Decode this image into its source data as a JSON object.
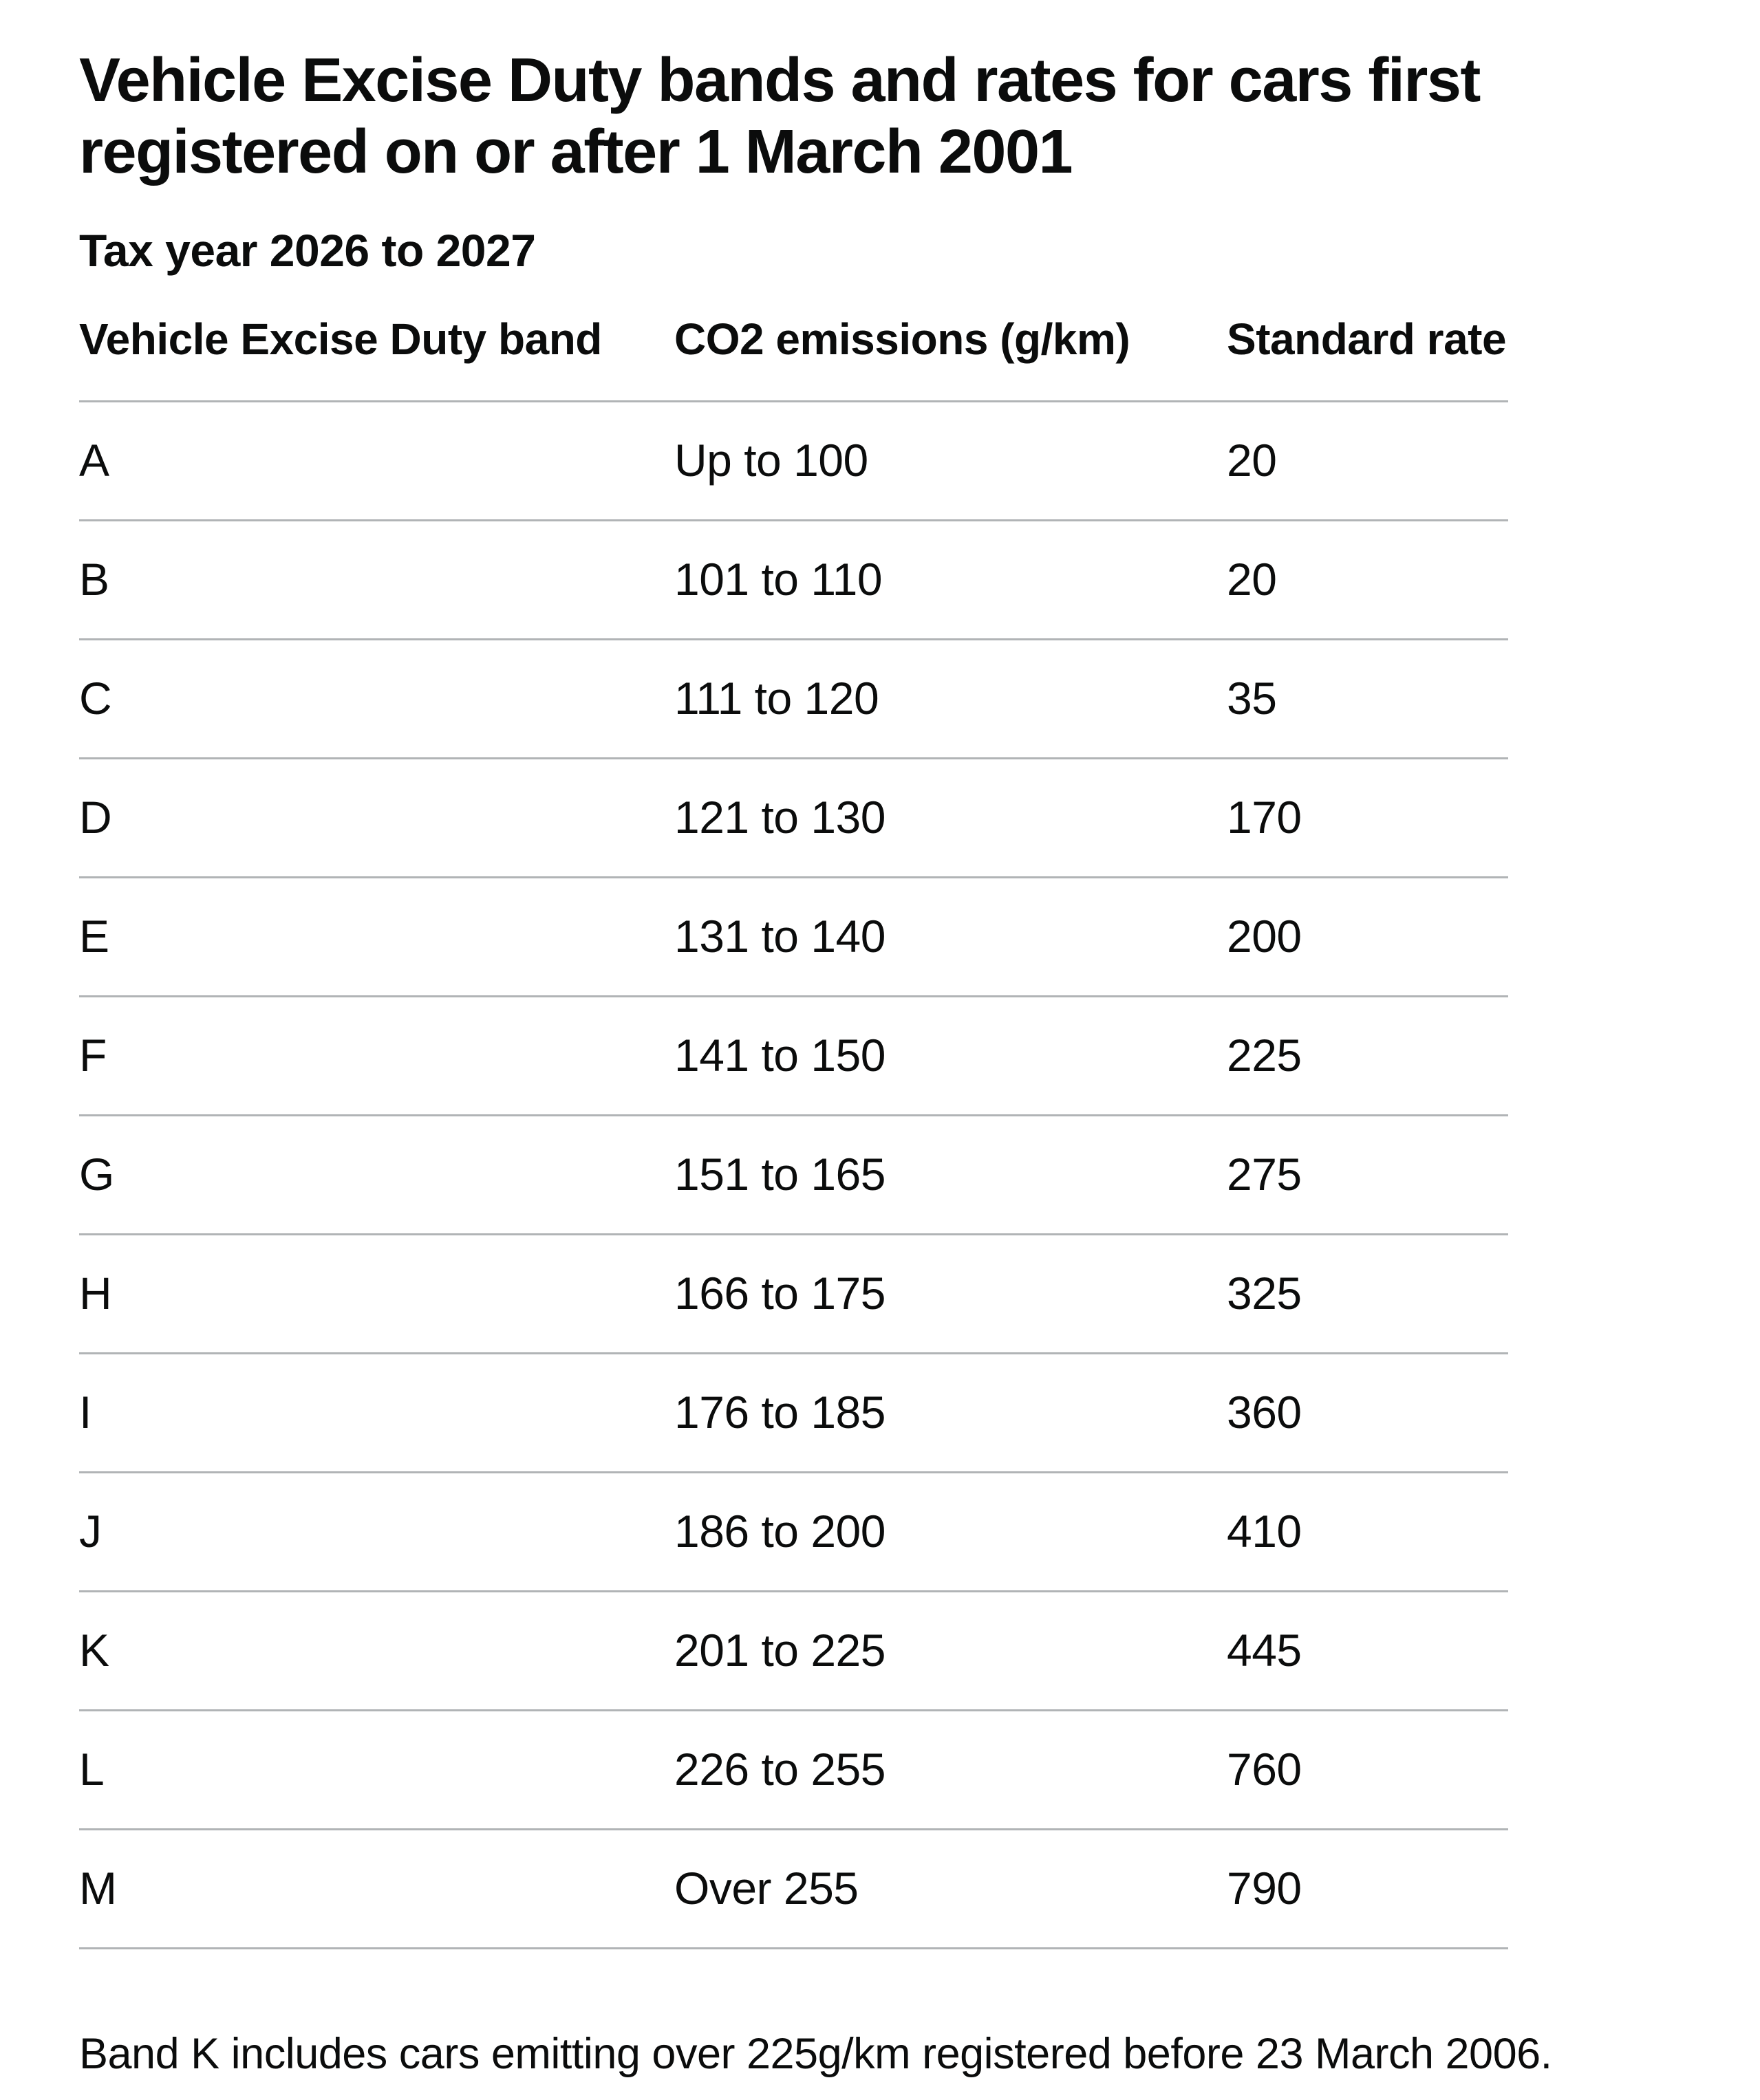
{
  "page": {
    "title": "Vehicle Excise Duty bands and rates for cars first\nregistered on or after 1 March 2001",
    "subtitle": "Tax year 2026 to 2027",
    "footnote": "Band K includes cars emitting over 225g/km registered before 23 March 2006."
  },
  "table": {
    "columns": [
      "Vehicle Excise Duty band",
      "CO2 emissions (g/km)",
      "Standard rate"
    ],
    "rows": [
      {
        "band": "A",
        "co2": "Up to 100",
        "rate": "20"
      },
      {
        "band": "B",
        "co2": "101 to 110",
        "rate": "20"
      },
      {
        "band": "C",
        "co2": "111 to 120",
        "rate": "35"
      },
      {
        "band": "D",
        "co2": "121 to 130",
        "rate": "170"
      },
      {
        "band": "E",
        "co2": "131 to 140",
        "rate": "200"
      },
      {
        "band": "F",
        "co2": "141 to 150",
        "rate": "225"
      },
      {
        "band": "G",
        "co2": "151 to 165",
        "rate": "275"
      },
      {
        "band": "H",
        "co2": "166 to 175",
        "rate": "325"
      },
      {
        "band": "I",
        "co2": "176 to 185",
        "rate": "360"
      },
      {
        "band": "J",
        "co2": "186 to 200",
        "rate": "410"
      },
      {
        "band": "K",
        "co2": "201 to 225",
        "rate": "445"
      },
      {
        "band": "L",
        "co2": "226 to 255",
        "rate": "760"
      },
      {
        "band": "M",
        "co2": "Over 255",
        "rate": "790"
      }
    ]
  },
  "colors": {
    "text": "#0b0c0c",
    "table_rule": "#b1b4b6",
    "background": "#ffffff"
  }
}
